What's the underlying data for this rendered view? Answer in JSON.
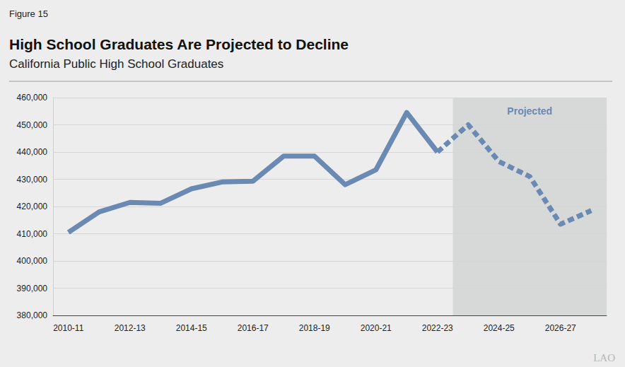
{
  "chart_data": {
    "type": "line",
    "figure": "Figure 15",
    "title": "High School Graduates Are Projected to Decline",
    "subtitle": "California Public High School Graduates",
    "annotations": [
      "Projected"
    ],
    "logo": "LAO",
    "categories": [
      "2010-11",
      null,
      "2012-13",
      null,
      "2014-15",
      null,
      "2016-17",
      null,
      "2018-19",
      null,
      "2020-21",
      null,
      "2022-23",
      null,
      "2024-25",
      null,
      "2026-27",
      null
    ],
    "series": [
      {
        "color": "#6a89b3",
        "line_style": "solid",
        "values": [
          410500,
          418000,
          421500,
          421200,
          426500,
          429000,
          429300,
          438500,
          438500,
          428000,
          433500,
          454500,
          440000,
          null,
          null,
          null,
          null,
          null
        ]
      },
      {
        "color": "#6a89b3",
        "line_style": "dashed",
        "values": [
          null,
          null,
          null,
          null,
          null,
          null,
          null,
          null,
          null,
          null,
          null,
          null,
          440000,
          450000,
          436500,
          431000,
          413500,
          418500
        ]
      }
    ],
    "ylim": [
      380000,
      460000
    ],
    "yticks": [
      {
        "value": 380000,
        "label": "380,000"
      },
      {
        "value": 390000,
        "label": "390,000"
      },
      {
        "value": 400000,
        "label": "400,000"
      },
      {
        "value": 410000,
        "label": "410,000"
      },
      {
        "value": 420000,
        "label": "420,000"
      },
      {
        "value": 430000,
        "label": "430,000"
      },
      {
        "value": 440000,
        "label": "440,000"
      },
      {
        "value": 450000,
        "label": "450,000"
      },
      {
        "value": 460000,
        "label": "460,000"
      }
    ],
    "grid": true
  }
}
